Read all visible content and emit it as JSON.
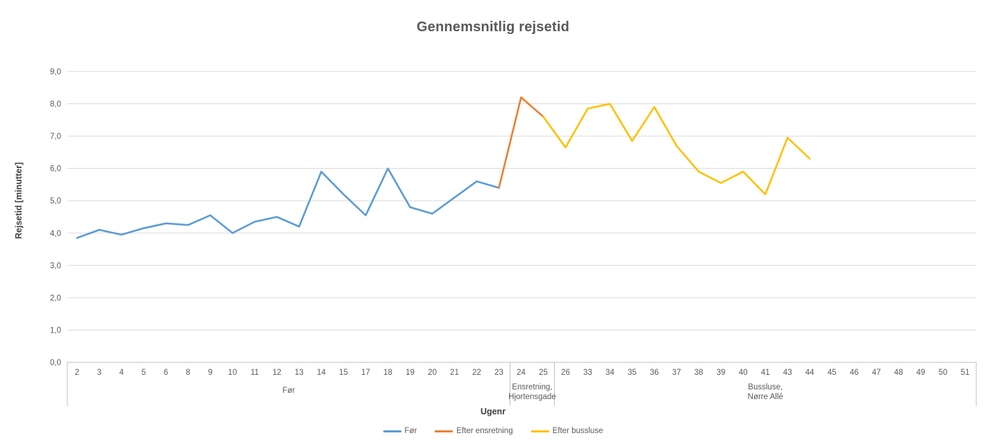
{
  "chart_data": {
    "type": "line",
    "title": "Gennemsnitlig rejsetid",
    "xlabel": "Ugenr",
    "ylabel": "Rejsetid [minutter]",
    "ylim": [
      0,
      9
    ],
    "y_tick_step": 1,
    "y_tick_labels": [
      "0,0",
      "1,0",
      "2,0",
      "3,0",
      "4,0",
      "5,0",
      "6,0",
      "7,0",
      "8,0",
      "9,0"
    ],
    "grid": true,
    "legend_position": "bottom-center",
    "categories": [
      "2",
      "3",
      "4",
      "5",
      "6",
      "8",
      "9",
      "10",
      "11",
      "12",
      "13",
      "14",
      "15",
      "17",
      "18",
      "19",
      "20",
      "21",
      "22",
      "23",
      "24",
      "25",
      "26",
      "33",
      "34",
      "35",
      "36",
      "37",
      "38",
      "39",
      "40",
      "41",
      "43",
      "44",
      "45",
      "46",
      "47",
      "48",
      "49",
      "50",
      "51"
    ],
    "category_groups": [
      {
        "label_lines": [
          "Før"
        ],
        "start": "2",
        "end": "23"
      },
      {
        "label_lines": [
          "Ensretning,",
          "Hjortensgade"
        ],
        "start": "24",
        "end": "25"
      },
      {
        "label_lines": [
          "Bussluse,",
          "Nørre Allé"
        ],
        "start": "26",
        "end": "51"
      }
    ],
    "series": [
      {
        "name": "Før",
        "color": "#5B9BD5",
        "weeks": [
          2,
          3,
          4,
          5,
          6,
          8,
          9,
          10,
          11,
          12,
          13,
          14,
          15,
          17,
          18,
          19,
          20,
          21,
          22,
          23
        ],
        "values": [
          3.85,
          4.1,
          3.95,
          4.15,
          4.3,
          4.25,
          4.55,
          4.0,
          4.35,
          4.5,
          4.2,
          5.9,
          5.2,
          4.55,
          6.0,
          4.8,
          4.6,
          5.1,
          5.6,
          5.4
        ]
      },
      {
        "name": "Efter ensretning",
        "color": "#ED7D31",
        "weeks": [
          23,
          24,
          25
        ],
        "values": [
          5.4,
          8.2,
          7.6
        ]
      },
      {
        "name": "Efter bussluse",
        "color": "#FFC000",
        "weeks": [
          25,
          26,
          33,
          34,
          35,
          36,
          37,
          38,
          39,
          40,
          41,
          43,
          44
        ],
        "values": [
          7.6,
          6.65,
          7.85,
          8.0,
          6.85,
          7.9,
          6.7,
          5.9,
          5.55,
          5.9,
          5.2,
          6.95,
          6.3
        ]
      }
    ]
  },
  "colors": {
    "gridline": "#D9D9D9",
    "axis_line": "#BFBFBF",
    "title_text": "#595959",
    "axis_text": "#595959",
    "axis_title_text": "#404040",
    "background": "#FFFFFF"
  }
}
